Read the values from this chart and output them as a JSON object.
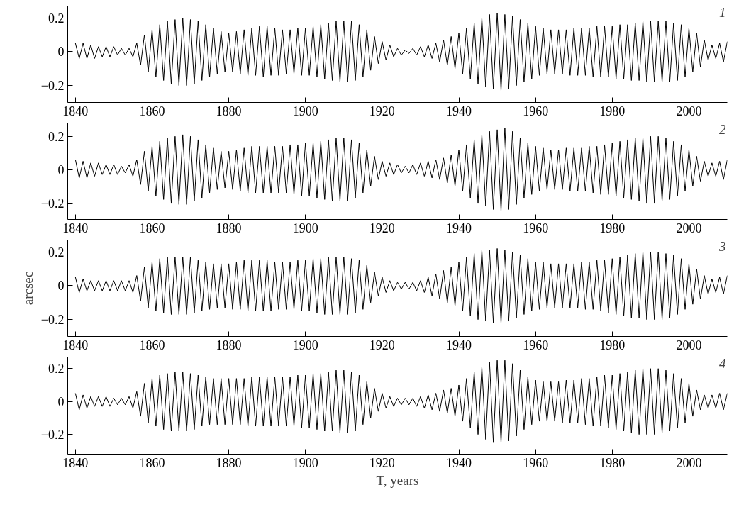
{
  "chart_data": [
    {
      "type": "line",
      "annotations": [
        "1"
      ],
      "xlim": [
        1838,
        2010
      ],
      "ylim": [
        -0.3,
        0.27
      ],
      "xticks": [
        1840,
        1860,
        1880,
        1900,
        1920,
        1940,
        1960,
        1980,
        2000
      ],
      "yticks": [
        -0.2,
        0,
        0.2
      ],
      "x": [
        1840,
        1841,
        1842,
        1843,
        1844,
        1845,
        1846,
        1847,
        1848,
        1849,
        1850,
        1851,
        1852,
        1853,
        1854,
        1855,
        1856,
        1857,
        1858,
        1859,
        1860,
        1861,
        1862,
        1863,
        1864,
        1865,
        1866,
        1867,
        1868,
        1869,
        1870,
        1871,
        1872,
        1873,
        1874,
        1875,
        1876,
        1877,
        1878,
        1879,
        1880,
        1881,
        1882,
        1883,
        1884,
        1885,
        1886,
        1887,
        1888,
        1889,
        1890,
        1891,
        1892,
        1893,
        1894,
        1895,
        1896,
        1897,
        1898,
        1899,
        1900,
        1901,
        1902,
        1903,
        1904,
        1905,
        1906,
        1907,
        1908,
        1909,
        1910,
        1911,
        1912,
        1913,
        1914,
        1915,
        1916,
        1917,
        1918,
        1919,
        1920,
        1921,
        1922,
        1923,
        1924,
        1925,
        1926,
        1927,
        1928,
        1929,
        1930,
        1931,
        1932,
        1933,
        1934,
        1935,
        1936,
        1937,
        1938,
        1939,
        1940,
        1941,
        1942,
        1943,
        1944,
        1945,
        1946,
        1947,
        1948,
        1949,
        1950,
        1951,
        1952,
        1953,
        1954,
        1955,
        1956,
        1957,
        1958,
        1959,
        1960,
        1961,
        1962,
        1963,
        1964,
        1965,
        1966,
        1967,
        1968,
        1969,
        1970,
        1971,
        1972,
        1973,
        1974,
        1975,
        1976,
        1977,
        1978,
        1979,
        1980,
        1981,
        1982,
        1983,
        1984,
        1985,
        1986,
        1987,
        1988,
        1989,
        1990,
        1991,
        1992,
        1993,
        1994,
        1995,
        1996,
        1997,
        1998,
        1999,
        2000,
        2001,
        2002,
        2003,
        2004,
        2005,
        2006,
        2007,
        2008,
        2009,
        2010
      ],
      "series": [
        {
          "color": "#000000",
          "values": [
            0.05,
            -0.04,
            0.05,
            -0.04,
            0.04,
            -0.04,
            0.03,
            -0.03,
            0.03,
            -0.03,
            0.03,
            -0.02,
            0.02,
            -0.02,
            0.02,
            -0.03,
            0.05,
            -0.08,
            0.1,
            -0.12,
            0.13,
            -0.15,
            0.16,
            -0.17,
            0.18,
            -0.19,
            0.19,
            -0.2,
            0.2,
            -0.2,
            0.19,
            -0.19,
            0.18,
            -0.17,
            0.16,
            -0.15,
            0.14,
            -0.13,
            0.12,
            -0.12,
            0.11,
            -0.12,
            0.12,
            -0.13,
            0.13,
            -0.14,
            0.14,
            -0.14,
            0.15,
            -0.15,
            0.15,
            -0.14,
            0.14,
            -0.14,
            0.13,
            -0.13,
            0.13,
            -0.13,
            0.14,
            -0.14,
            0.14,
            -0.14,
            0.15,
            -0.15,
            0.16,
            -0.16,
            0.17,
            -0.17,
            0.18,
            -0.18,
            0.18,
            -0.18,
            0.18,
            -0.17,
            0.16,
            -0.15,
            0.13,
            -0.11,
            0.09,
            -0.07,
            0.06,
            -0.05,
            0.04,
            -0.03,
            0.02,
            -0.02,
            0.01,
            -0.01,
            0.02,
            -0.02,
            0.03,
            -0.03,
            0.04,
            -0.04,
            0.05,
            -0.06,
            0.07,
            -0.08,
            0.09,
            -0.1,
            0.11,
            -0.13,
            0.14,
            -0.16,
            0.17,
            -0.19,
            0.2,
            -0.21,
            0.22,
            -0.22,
            0.23,
            -0.23,
            0.22,
            -0.22,
            0.21,
            -0.2,
            0.19,
            -0.18,
            0.17,
            -0.16,
            0.15,
            -0.14,
            0.14,
            -0.13,
            0.13,
            -0.13,
            0.13,
            -0.13,
            0.13,
            -0.14,
            0.14,
            -0.14,
            0.14,
            -0.14,
            0.14,
            -0.15,
            0.15,
            -0.15,
            0.15,
            -0.15,
            0.15,
            -0.16,
            0.16,
            -0.16,
            0.16,
            -0.17,
            0.17,
            -0.17,
            0.18,
            -0.18,
            0.18,
            -0.18,
            0.18,
            -0.18,
            0.18,
            -0.18,
            0.17,
            -0.17,
            0.16,
            -0.15,
            0.14,
            -0.12,
            0.11,
            -0.09,
            0.07,
            -0.05,
            0.04,
            -0.04,
            0.05,
            -0.06,
            0.06
          ]
        }
      ]
    },
    {
      "type": "line",
      "annotations": [
        "2"
      ],
      "xlim": [
        1838,
        2010
      ],
      "ylim": [
        -0.3,
        0.28
      ],
      "xticks": [
        1840,
        1860,
        1880,
        1900,
        1920,
        1940,
        1960,
        1980,
        2000
      ],
      "yticks": [
        -0.2,
        0,
        0.2
      ],
      "x": [
        1840,
        1841,
        1842,
        1843,
        1844,
        1845,
        1846,
        1847,
        1848,
        1849,
        1850,
        1851,
        1852,
        1853,
        1854,
        1855,
        1856,
        1857,
        1858,
        1859,
        1860,
        1861,
        1862,
        1863,
        1864,
        1865,
        1866,
        1867,
        1868,
        1869,
        1870,
        1871,
        1872,
        1873,
        1874,
        1875,
        1876,
        1877,
        1878,
        1879,
        1880,
        1881,
        1882,
        1883,
        1884,
        1885,
        1886,
        1887,
        1888,
        1889,
        1890,
        1891,
        1892,
        1893,
        1894,
        1895,
        1896,
        1897,
        1898,
        1899,
        1900,
        1901,
        1902,
        1903,
        1904,
        1905,
        1906,
        1907,
        1908,
        1909,
        1910,
        1911,
        1912,
        1913,
        1914,
        1915,
        1916,
        1917,
        1918,
        1919,
        1920,
        1921,
        1922,
        1923,
        1924,
        1925,
        1926,
        1927,
        1928,
        1929,
        1930,
        1931,
        1932,
        1933,
        1934,
        1935,
        1936,
        1937,
        1938,
        1939,
        1940,
        1941,
        1942,
        1943,
        1944,
        1945,
        1946,
        1947,
        1948,
        1949,
        1950,
        1951,
        1952,
        1953,
        1954,
        1955,
        1956,
        1957,
        1958,
        1959,
        1960,
        1961,
        1962,
        1963,
        1964,
        1965,
        1966,
        1967,
        1968,
        1969,
        1970,
        1971,
        1972,
        1973,
        1974,
        1975,
        1976,
        1977,
        1978,
        1979,
        1980,
        1981,
        1982,
        1983,
        1984,
        1985,
        1986,
        1987,
        1988,
        1989,
        1990,
        1991,
        1992,
        1993,
        1994,
        1995,
        1996,
        1997,
        1998,
        1999,
        2000,
        2001,
        2002,
        2003,
        2004,
        2005,
        2006,
        2007,
        2008,
        2009,
        2010
      ],
      "series": [
        {
          "color": "#000000",
          "values": [
            0.06,
            -0.05,
            0.05,
            -0.05,
            0.04,
            -0.04,
            0.04,
            -0.03,
            0.03,
            -0.03,
            0.03,
            -0.03,
            0.02,
            -0.02,
            0.03,
            -0.04,
            0.06,
            -0.09,
            0.11,
            -0.13,
            0.14,
            -0.16,
            0.17,
            -0.18,
            0.19,
            -0.2,
            0.2,
            -0.21,
            0.21,
            -0.21,
            0.2,
            -0.19,
            0.18,
            -0.17,
            0.15,
            -0.14,
            0.13,
            -0.12,
            0.11,
            -0.11,
            0.11,
            -0.12,
            0.12,
            -0.13,
            0.13,
            -0.14,
            0.14,
            -0.14,
            0.14,
            -0.14,
            0.14,
            -0.14,
            0.14,
            -0.14,
            0.14,
            -0.14,
            0.15,
            -0.15,
            0.15,
            -0.16,
            0.16,
            -0.16,
            0.16,
            -0.17,
            0.17,
            -0.18,
            0.18,
            -0.19,
            0.19,
            -0.19,
            0.19,
            -0.19,
            0.18,
            -0.17,
            0.16,
            -0.14,
            0.12,
            -0.1,
            0.08,
            -0.06,
            0.05,
            -0.04,
            0.04,
            -0.03,
            0.03,
            -0.02,
            0.02,
            -0.02,
            0.03,
            -0.03,
            0.04,
            -0.04,
            0.05,
            -0.05,
            0.06,
            -0.06,
            0.07,
            -0.08,
            0.09,
            -0.1,
            0.12,
            -0.13,
            0.15,
            -0.17,
            0.18,
            -0.2,
            0.21,
            -0.22,
            0.23,
            -0.24,
            0.24,
            -0.25,
            0.25,
            -0.24,
            0.23,
            -0.21,
            0.19,
            -0.17,
            0.16,
            -0.15,
            0.14,
            -0.13,
            0.13,
            -0.12,
            0.12,
            -0.12,
            0.12,
            -0.12,
            0.13,
            -0.13,
            0.13,
            -0.13,
            0.13,
            -0.13,
            0.14,
            -0.14,
            0.14,
            -0.15,
            0.15,
            -0.15,
            0.16,
            -0.16,
            0.17,
            -0.17,
            0.18,
            -0.18,
            0.19,
            -0.19,
            0.19,
            -0.2,
            0.2,
            -0.2,
            0.2,
            -0.19,
            0.19,
            -0.18,
            0.17,
            -0.16,
            0.15,
            -0.13,
            0.12,
            -0.1,
            0.08,
            -0.07,
            0.05,
            -0.04,
            0.04,
            -0.04,
            0.05,
            -0.06,
            0.06
          ]
        }
      ]
    },
    {
      "type": "line",
      "ylabel": "arcsec",
      "annotations": [
        "3"
      ],
      "xlim": [
        1838,
        2010
      ],
      "ylim": [
        -0.3,
        0.27
      ],
      "xticks": [
        1840,
        1860,
        1880,
        1900,
        1920,
        1940,
        1960,
        1980,
        2000
      ],
      "yticks": [
        -0.2,
        0,
        0.2
      ],
      "x": [
        1840,
        1841,
        1842,
        1843,
        1844,
        1845,
        1846,
        1847,
        1848,
        1849,
        1850,
        1851,
        1852,
        1853,
        1854,
        1855,
        1856,
        1857,
        1858,
        1859,
        1860,
        1861,
        1862,
        1863,
        1864,
        1865,
        1866,
        1867,
        1868,
        1869,
        1870,
        1871,
        1872,
        1873,
        1874,
        1875,
        1876,
        1877,
        1878,
        1879,
        1880,
        1881,
        1882,
        1883,
        1884,
        1885,
        1886,
        1887,
        1888,
        1889,
        1890,
        1891,
        1892,
        1893,
        1894,
        1895,
        1896,
        1897,
        1898,
        1899,
        1900,
        1901,
        1902,
        1903,
        1904,
        1905,
        1906,
        1907,
        1908,
        1909,
        1910,
        1911,
        1912,
        1913,
        1914,
        1915,
        1916,
        1917,
        1918,
        1919,
        1920,
        1921,
        1922,
        1923,
        1924,
        1925,
        1926,
        1927,
        1928,
        1929,
        1930,
        1931,
        1932,
        1933,
        1934,
        1935,
        1936,
        1937,
        1938,
        1939,
        1940,
        1941,
        1942,
        1943,
        1944,
        1945,
        1946,
        1947,
        1948,
        1949,
        1950,
        1951,
        1952,
        1953,
        1954,
        1955,
        1956,
        1957,
        1958,
        1959,
        1960,
        1961,
        1962,
        1963,
        1964,
        1965,
        1966,
        1967,
        1968,
        1969,
        1970,
        1971,
        1972,
        1973,
        1974,
        1975,
        1976,
        1977,
        1978,
        1979,
        1980,
        1981,
        1982,
        1983,
        1984,
        1985,
        1986,
        1987,
        1988,
        1989,
        1990,
        1991,
        1992,
        1993,
        1994,
        1995,
        1996,
        1997,
        1998,
        1999,
        2000,
        2001,
        2002,
        2003,
        2004,
        2005,
        2006,
        2007,
        2008,
        2009,
        2010
      ],
      "series": [
        {
          "color": "#000000",
          "values": [
            0.05,
            -0.04,
            0.04,
            -0.03,
            0.03,
            -0.03,
            0.03,
            -0.03,
            0.03,
            -0.03,
            0.03,
            -0.03,
            0.03,
            -0.03,
            0.03,
            -0.04,
            0.06,
            -0.09,
            0.11,
            -0.13,
            0.14,
            -0.15,
            0.16,
            -0.16,
            0.17,
            -0.17,
            0.17,
            -0.17,
            0.17,
            -0.17,
            0.17,
            -0.16,
            0.15,
            -0.15,
            0.14,
            -0.14,
            0.13,
            -0.13,
            0.13,
            -0.13,
            0.13,
            -0.14,
            0.14,
            -0.14,
            0.15,
            -0.15,
            0.15,
            -0.15,
            0.15,
            -0.15,
            0.15,
            -0.15,
            0.14,
            -0.14,
            0.14,
            -0.14,
            0.14,
            -0.14,
            0.15,
            -0.15,
            0.15,
            -0.15,
            0.16,
            -0.16,
            0.16,
            -0.17,
            0.17,
            -0.17,
            0.17,
            -0.17,
            0.17,
            -0.17,
            0.16,
            -0.16,
            0.15,
            -0.14,
            0.12,
            -0.1,
            0.08,
            -0.06,
            0.05,
            -0.04,
            0.03,
            -0.03,
            0.02,
            -0.02,
            0.02,
            -0.02,
            0.02,
            -0.03,
            0.03,
            -0.04,
            0.05,
            -0.06,
            0.07,
            -0.08,
            0.09,
            -0.1,
            0.11,
            -0.12,
            0.14,
            -0.15,
            0.17,
            -0.18,
            0.19,
            -0.2,
            0.21,
            -0.21,
            0.21,
            -0.22,
            0.22,
            -0.22,
            0.21,
            -0.21,
            0.2,
            -0.19,
            0.18,
            -0.17,
            0.16,
            -0.15,
            0.14,
            -0.14,
            0.14,
            -0.13,
            0.13,
            -0.13,
            0.13,
            -0.13,
            0.13,
            -0.13,
            0.13,
            -0.13,
            0.14,
            -0.14,
            0.14,
            -0.14,
            0.15,
            -0.15,
            0.15,
            -0.16,
            0.16,
            -0.17,
            0.17,
            -0.18,
            0.18,
            -0.19,
            0.19,
            -0.19,
            0.2,
            -0.2,
            0.2,
            -0.2,
            0.2,
            -0.2,
            0.19,
            -0.19,
            0.18,
            -0.17,
            0.16,
            -0.14,
            0.13,
            -0.11,
            0.1,
            -0.08,
            0.06,
            -0.05,
            0.04,
            -0.04,
            0.05,
            -0.05,
            0.06
          ]
        }
      ]
    },
    {
      "type": "line",
      "xlabel": "T, years",
      "annotations": [
        "4"
      ],
      "xlim": [
        1838,
        2010
      ],
      "ylim": [
        -0.32,
        0.27
      ],
      "xticks": [
        1840,
        1860,
        1880,
        1900,
        1920,
        1940,
        1960,
        1980,
        2000
      ],
      "yticks": [
        -0.2,
        0,
        0.2
      ],
      "x": [
        1840,
        1841,
        1842,
        1843,
        1844,
        1845,
        1846,
        1847,
        1848,
        1849,
        1850,
        1851,
        1852,
        1853,
        1854,
        1855,
        1856,
        1857,
        1858,
        1859,
        1860,
        1861,
        1862,
        1863,
        1864,
        1865,
        1866,
        1867,
        1868,
        1869,
        1870,
        1871,
        1872,
        1873,
        1874,
        1875,
        1876,
        1877,
        1878,
        1879,
        1880,
        1881,
        1882,
        1883,
        1884,
        1885,
        1886,
        1887,
        1888,
        1889,
        1890,
        1891,
        1892,
        1893,
        1894,
        1895,
        1896,
        1897,
        1898,
        1899,
        1900,
        1901,
        1902,
        1903,
        1904,
        1905,
        1906,
        1907,
        1908,
        1909,
        1910,
        1911,
        1912,
        1913,
        1914,
        1915,
        1916,
        1917,
        1918,
        1919,
        1920,
        1921,
        1922,
        1923,
        1924,
        1925,
        1926,
        1927,
        1928,
        1929,
        1930,
        1931,
        1932,
        1933,
        1934,
        1935,
        1936,
        1937,
        1938,
        1939,
        1940,
        1941,
        1942,
        1943,
        1944,
        1945,
        1946,
        1947,
        1948,
        1949,
        1950,
        1951,
        1952,
        1953,
        1954,
        1955,
        1956,
        1957,
        1958,
        1959,
        1960,
        1961,
        1962,
        1963,
        1964,
        1965,
        1966,
        1967,
        1968,
        1969,
        1970,
        1971,
        1972,
        1973,
        1974,
        1975,
        1976,
        1977,
        1978,
        1979,
        1980,
        1981,
        1982,
        1983,
        1984,
        1985,
        1986,
        1987,
        1988,
        1989,
        1990,
        1991,
        1992,
        1993,
        1994,
        1995,
        1996,
        1997,
        1998,
        1999,
        2000,
        2001,
        2002,
        2003,
        2004,
        2005,
        2006,
        2007,
        2008,
        2009,
        2010
      ],
      "series": [
        {
          "color": "#000000",
          "values": [
            0.05,
            -0.05,
            0.04,
            -0.04,
            0.03,
            -0.03,
            0.03,
            -0.03,
            0.03,
            -0.03,
            0.02,
            -0.02,
            0.02,
            -0.02,
            0.03,
            -0.04,
            0.06,
            -0.09,
            0.11,
            -0.13,
            0.14,
            -0.15,
            0.16,
            -0.17,
            0.17,
            -0.18,
            0.18,
            -0.18,
            0.18,
            -0.18,
            0.17,
            -0.17,
            0.16,
            -0.15,
            0.15,
            -0.14,
            0.14,
            -0.14,
            0.14,
            -0.14,
            0.14,
            -0.14,
            0.14,
            -0.14,
            0.14,
            -0.15,
            0.15,
            -0.15,
            0.15,
            -0.15,
            0.15,
            -0.15,
            0.15,
            -0.15,
            0.15,
            -0.15,
            0.15,
            -0.15,
            0.16,
            -0.16,
            0.16,
            -0.16,
            0.17,
            -0.17,
            0.17,
            -0.18,
            0.18,
            -0.18,
            0.19,
            -0.19,
            0.19,
            -0.19,
            0.18,
            -0.18,
            0.16,
            -0.14,
            0.12,
            -0.1,
            0.08,
            -0.06,
            0.05,
            -0.04,
            0.03,
            -0.03,
            0.02,
            -0.02,
            0.02,
            -0.02,
            0.02,
            -0.03,
            0.03,
            -0.04,
            0.04,
            -0.05,
            0.05,
            -0.06,
            0.07,
            -0.07,
            0.08,
            -0.09,
            0.1,
            -0.12,
            0.14,
            -0.16,
            0.18,
            -0.2,
            0.21,
            -0.23,
            0.24,
            -0.25,
            0.25,
            -0.25,
            0.25,
            -0.24,
            0.23,
            -0.21,
            0.19,
            -0.17,
            0.15,
            -0.14,
            0.13,
            -0.12,
            0.12,
            -0.12,
            0.12,
            -0.12,
            0.12,
            -0.13,
            0.13,
            -0.13,
            0.13,
            -0.13,
            0.14,
            -0.14,
            0.14,
            -0.15,
            0.15,
            -0.15,
            0.16,
            -0.16,
            0.16,
            -0.17,
            0.17,
            -0.18,
            0.18,
            -0.19,
            0.19,
            -0.2,
            0.2,
            -0.2,
            0.2,
            -0.2,
            0.2,
            -0.19,
            0.19,
            -0.18,
            0.17,
            -0.16,
            0.14,
            -0.13,
            0.11,
            -0.09,
            0.07,
            -0.05,
            0.04,
            -0.04,
            0.04,
            -0.04,
            0.05,
            -0.05,
            0.05
          ]
        }
      ]
    }
  ]
}
